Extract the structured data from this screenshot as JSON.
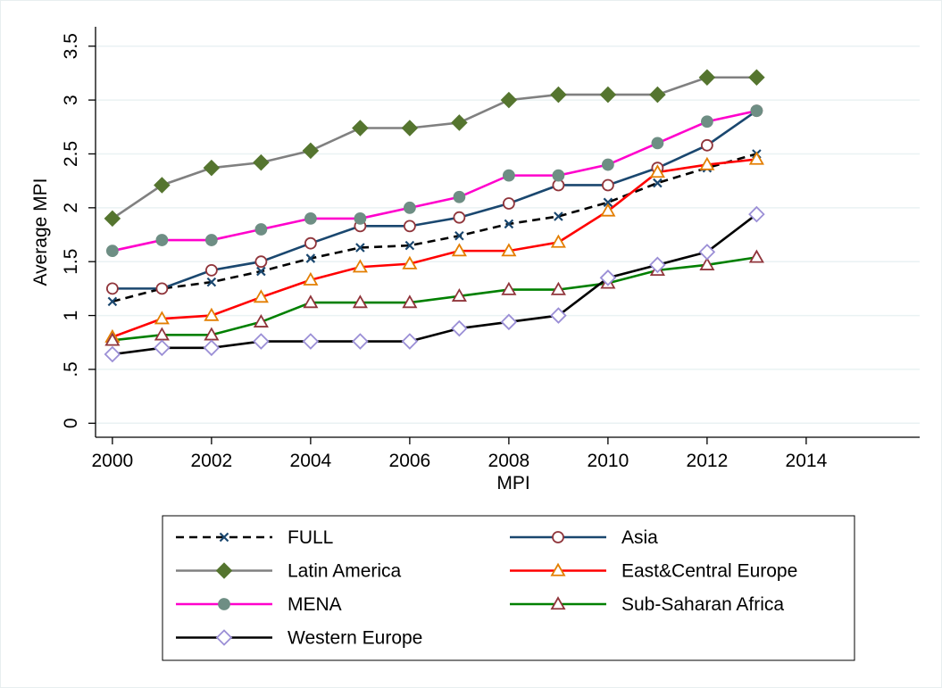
{
  "chart_data": {
    "type": "line",
    "x_label": "MPI",
    "y_label": "Average MPI",
    "x": [
      2000,
      2001,
      2002,
      2003,
      2004,
      2005,
      2006,
      2007,
      2008,
      2009,
      2010,
      2011,
      2012,
      2013
    ],
    "xlim": [
      1999.66,
      2016.29
    ],
    "xticks": [
      2000,
      2002,
      2004,
      2006,
      2008,
      2010,
      2012,
      2014
    ],
    "ylim": [
      -0.13,
      3.68
    ],
    "yticks": [
      0,
      {
        "value": 0.5,
        "label": ".5"
      },
      1,
      1.5,
      2,
      2.5,
      3,
      3.5
    ],
    "grid": true,
    "series": [
      {
        "name": "FULL",
        "color": "#000000",
        "dashed": true,
        "marker": "x",
        "marker_color": "#1a476f",
        "marker_hollow": false,
        "values": [
          1.13,
          1.25,
          1.31,
          1.41,
          1.53,
          1.63,
          1.65,
          1.74,
          1.85,
          1.92,
          2.05,
          2.23,
          2.37,
          2.5
        ]
      },
      {
        "name": "Asia",
        "color": "#1a476f",
        "dashed": false,
        "marker": "circle",
        "marker_color": "#90353b",
        "marker_hollow": true,
        "values": [
          1.25,
          1.25,
          1.42,
          1.5,
          1.67,
          1.83,
          1.83,
          1.91,
          2.04,
          2.21,
          2.21,
          2.37,
          2.58,
          2.9
        ]
      },
      {
        "name": "Latin America",
        "color": "#808080",
        "dashed": false,
        "marker": "diamond",
        "marker_color": "#55752f",
        "marker_hollow": false,
        "values": [
          1.9,
          2.21,
          2.37,
          2.42,
          2.53,
          2.74,
          2.74,
          2.79,
          3.0,
          3.05,
          3.05,
          3.05,
          3.21,
          3.21
        ]
      },
      {
        "name": "East&Central Europe",
        "color": "#ff0000",
        "dashed": false,
        "marker": "triangle",
        "marker_color": "#e37e00",
        "marker_hollow": true,
        "values": [
          0.8,
          0.97,
          1.0,
          1.17,
          1.33,
          1.45,
          1.48,
          1.6,
          1.6,
          1.68,
          1.97,
          2.33,
          2.4,
          2.45
        ]
      },
      {
        "name": "MENA",
        "color": "#ff00cc",
        "dashed": false,
        "marker": "circle",
        "marker_color": "#6e8e84",
        "marker_hollow": false,
        "values": [
          1.6,
          1.7,
          1.7,
          1.8,
          1.9,
          1.9,
          2.0,
          2.1,
          2.3,
          2.3,
          2.4,
          2.6,
          2.8,
          2.9
        ]
      },
      {
        "name": "Sub-Saharan Africa",
        "color": "#008000",
        "dashed": false,
        "marker": "triangle",
        "marker_color": "#90353b",
        "marker_hollow": true,
        "values": [
          0.77,
          0.82,
          0.82,
          0.94,
          1.12,
          1.12,
          1.12,
          1.18,
          1.24,
          1.24,
          1.3,
          1.42,
          1.47,
          1.54
        ]
      },
      {
        "name": "Western Europe",
        "color": "#000000",
        "dashed": false,
        "marker": "diamond",
        "marker_color": "#9b8fd6",
        "marker_hollow": true,
        "values": [
          0.64,
          0.7,
          0.7,
          0.76,
          0.76,
          0.76,
          0.76,
          0.88,
          0.94,
          1.0,
          1.35,
          1.47,
          1.59,
          1.94
        ]
      }
    ]
  }
}
